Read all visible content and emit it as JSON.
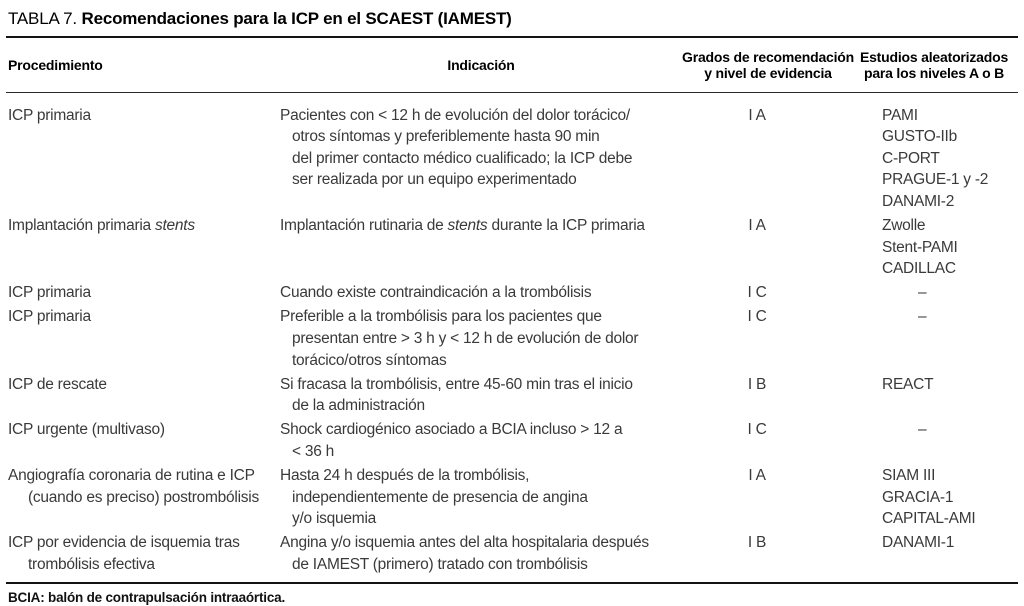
{
  "title": {
    "label": "TABLA 7.",
    "text": "Recomendaciones para la ICP en el SCAEST (IAMEST)"
  },
  "header": {
    "procedimiento": "Procedimiento",
    "indicacion": "Indicación",
    "grados_line1": "Grados de recomendación",
    "grados_line2": "y nivel de evidencia",
    "estudios_line1": "Estudios aleatorizados",
    "estudios_line2": "para los niveles A o B"
  },
  "rows": [
    {
      "procedimiento": [
        "ICP primaria"
      ],
      "indicacion": [
        "Pacientes con < 12 h de evolución del dolor torácico/",
        "otros síntomas y preferiblemente hasta 90 min",
        "del primer contacto médico cualificado; la ICP debe",
        "ser realizada por un equipo experimentado"
      ],
      "grado": "I A",
      "estudios": [
        "PAMI",
        "GUSTO-IIb",
        "C-PORT",
        "PRAGUE-1 y -2",
        "DANAMI-2"
      ]
    },
    {
      "procedimiento": [
        "Implantación primaria *stents*"
      ],
      "indicacion": [
        "Implantación rutinaria de *stents* durante la ICP primaria"
      ],
      "grado": "I A",
      "estudios": [
        "Zwolle",
        "Stent-PAMI",
        "CADILLAC"
      ]
    },
    {
      "procedimiento": [
        "ICP primaria"
      ],
      "indicacion": [
        "Cuando existe contraindicación a la trombólisis"
      ],
      "grado": "I C",
      "estudios": [
        "–"
      ]
    },
    {
      "procedimiento": [
        "ICP primaria"
      ],
      "indicacion": [
        "Preferible a la trombólisis para los pacientes que",
        "presentan entre > 3 h y < 12 h de evolución de dolor",
        "torácico/otros síntomas"
      ],
      "grado": "I C",
      "estudios": [
        "–"
      ]
    },
    {
      "procedimiento": [
        "ICP de rescate"
      ],
      "indicacion": [
        "Si fracasa la trombólisis, entre 45-60 min tras el inicio",
        "de la administración"
      ],
      "grado": "I B",
      "estudios": [
        "REACT"
      ]
    },
    {
      "procedimiento": [
        "ICP urgente (multivaso)"
      ],
      "indicacion": [
        "Shock cardiogénico asociado a BCIA incluso > 12 a",
        "< 36 h"
      ],
      "grado": "I C",
      "estudios": [
        "–"
      ]
    },
    {
      "procedimiento": [
        "Angiografía coronaria de rutina e ICP",
        "(cuando es preciso) postrombólisis"
      ],
      "indicacion": [
        "Hasta 24 h después de la trombólisis,",
        "independientemente de presencia de angina",
        "y/o isquemia"
      ],
      "grado": "I A",
      "estudios": [
        "SIAM III",
        "GRACIA-1",
        "CAPITAL-AMI"
      ]
    },
    {
      "procedimiento": [
        "ICP por evidencia de isquemia tras",
        "trombólisis efectiva"
      ],
      "indicacion": [
        "Angina y/o isquemia antes del alta hospitalaria después",
        "de IAMEST (primero) tratado con trombólisis"
      ],
      "grado": "I B",
      "estudios": [
        "DANAMI-1"
      ]
    }
  ],
  "footnote": "BCIA: balón de contrapulsación intraaórtica."
}
